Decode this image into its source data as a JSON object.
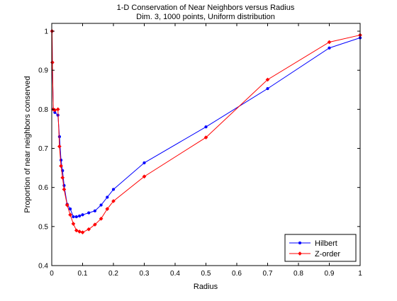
{
  "chart_data": {
    "type": "line",
    "title": "1-D Conservation of Near Neighbors versus Radius",
    "subtitle": "Dim. 3, 1000 points, Uniform distribution",
    "xlabel": "Radius",
    "ylabel": "Proportion of near neighbors conserved",
    "xlim": [
      0,
      1
    ],
    "ylim": [
      0.4,
      1.02
    ],
    "xticks": [
      0,
      0.1,
      0.2,
      0.3,
      0.4,
      0.5,
      0.6,
      0.7,
      0.8,
      0.9,
      1
    ],
    "xtick_labels": [
      "0",
      "0.1",
      "0.2",
      "0.3",
      "0.4",
      "0.5",
      "0.6",
      "0.7",
      "0.8",
      "0.9",
      "1"
    ],
    "yticks": [
      0.4,
      0.5,
      0.6,
      0.7,
      0.8,
      0.9,
      1
    ],
    "ytick_labels": [
      "0.4",
      "0.5",
      "0.6",
      "0.7",
      "0.8",
      "0.9",
      "1"
    ],
    "grid": false,
    "legend_position": "bottom-right",
    "series": [
      {
        "name": "Hilbert",
        "color": "#0000ff",
        "marker": "dot",
        "x": [
          0.001,
          0.002,
          0.005,
          0.01,
          0.02,
          0.025,
          0.03,
          0.035,
          0.04,
          0.05,
          0.06,
          0.07,
          0.08,
          0.09,
          0.1,
          0.12,
          0.14,
          0.16,
          0.18,
          0.2,
          0.3,
          0.5,
          0.7,
          0.9,
          1.0
        ],
        "y": [
          1.0,
          0.92,
          0.8,
          0.792,
          0.785,
          0.73,
          0.67,
          0.643,
          0.605,
          0.557,
          0.545,
          0.525,
          0.525,
          0.527,
          0.53,
          0.535,
          0.54,
          0.555,
          0.575,
          0.595,
          0.663,
          0.755,
          0.853,
          0.957,
          0.983
        ]
      },
      {
        "name": "Z-order",
        "color": "#ff0000",
        "marker": "diamond",
        "x": [
          0.001,
          0.002,
          0.005,
          0.01,
          0.02,
          0.025,
          0.03,
          0.035,
          0.04,
          0.05,
          0.06,
          0.07,
          0.08,
          0.09,
          0.1,
          0.12,
          0.14,
          0.16,
          0.18,
          0.2,
          0.3,
          0.5,
          0.7,
          0.9,
          1.0
        ],
        "y": [
          1.0,
          0.92,
          0.8,
          0.798,
          0.8,
          0.705,
          0.655,
          0.625,
          0.595,
          0.555,
          0.53,
          0.507,
          0.49,
          0.487,
          0.485,
          0.493,
          0.505,
          0.52,
          0.545,
          0.565,
          0.628,
          0.728,
          0.876,
          0.972,
          0.99
        ]
      }
    ]
  }
}
